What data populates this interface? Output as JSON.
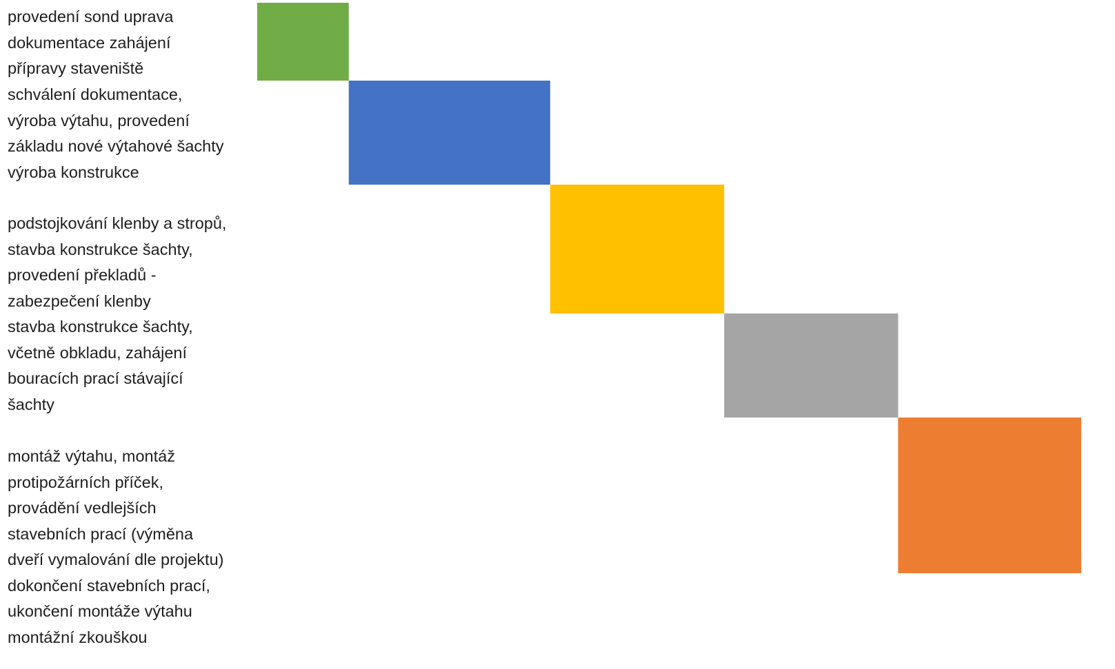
{
  "chart_data": {
    "type": "bar",
    "title": "",
    "xlabel": "",
    "ylabel": "",
    "grid": false,
    "legend": "none",
    "tasks": [
      {
        "label": "provedení sond uprava\ndokumentace zahájení\npřípravy staveniště",
        "start": 0,
        "end": 1,
        "color": "#70AD47"
      },
      {
        "label": "schválení dokumentace,\nvýroba výtahu, provedení\nzákladu nové výtahové šachty\nvýroba konstrukce",
        "start": 1,
        "end": 3.2,
        "color": "#4472C4"
      },
      {
        "label": "podstojkování klenby a stropů,\nstavba konstrukce šachty,\nprovedení překladů -\nzabezpečení klenby",
        "start": 3.2,
        "end": 5.1,
        "color": "#FFC000"
      },
      {
        "label": " stavba konstrukce šachty,\nvčetně obkladu, zahájení\nbouracích prací stávající\nšachty",
        "start": 5.1,
        "end": 7,
        "color": "#A5A5A5"
      },
      {
        "label": "montáž výtahu, montáž\nprotipožárních příček,\nprovádění vedlejších\nstavebních prací (výměna\ndveří vymalování dle projektu)\ndokončení stavebních prací,\nukončení montáže výtahu\nmontážní zkouškou",
        "start": 7,
        "end": 9,
        "color": "#ED7D31"
      }
    ],
    "xlim": [
      0,
      9
    ]
  }
}
